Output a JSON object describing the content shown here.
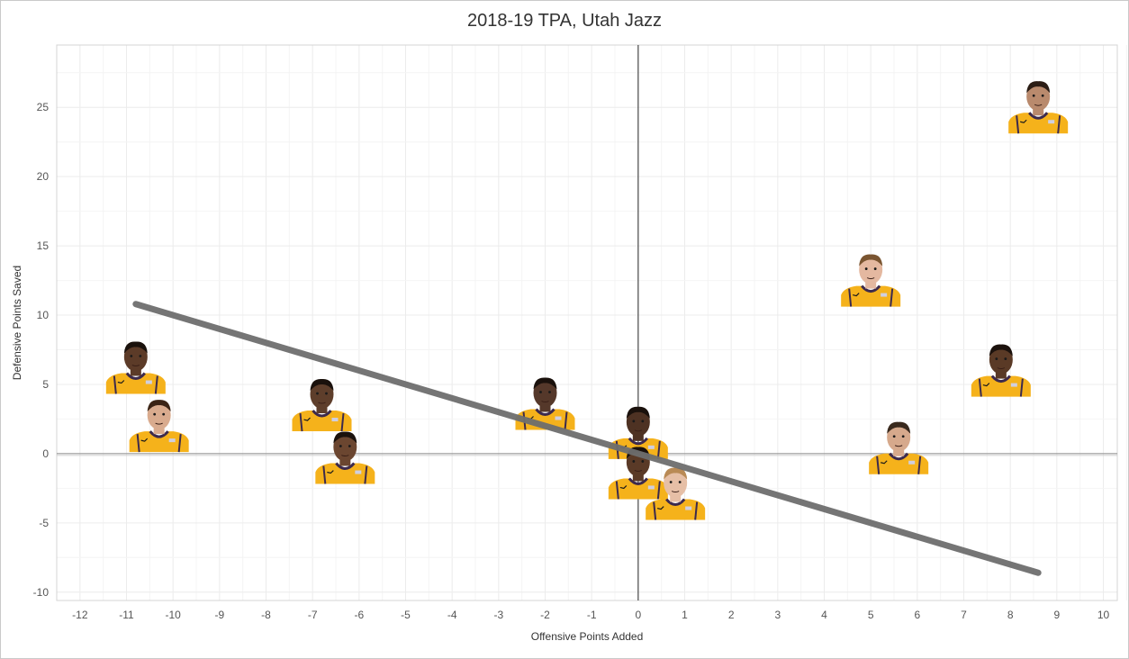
{
  "chart_data": {
    "type": "scatter",
    "title": "2018-19 TPA, Utah Jazz",
    "xlabel": "Offensive Points Added",
    "ylabel": "Defensive Points Saved",
    "xlim": [
      -12.5,
      10.3
    ],
    "ylim": [
      -10.6,
      29.5
    ],
    "x_ticks": [
      -12,
      -11,
      -10,
      -9,
      -8,
      -7,
      -6,
      -5,
      -4,
      -3,
      -2,
      -1,
      0,
      1,
      2,
      3,
      4,
      5,
      6,
      7,
      8,
      9,
      10
    ],
    "y_ticks": [
      -10,
      -5,
      0,
      5,
      10,
      15,
      20,
      25
    ],
    "grid": true,
    "points": [
      {
        "x": 8.6,
        "y": 25.0,
        "jersey": "#f5b21b",
        "skin": "#b98a6d",
        "hair": "#2b1d15"
      },
      {
        "x": 5.0,
        "y": 12.5,
        "jersey": "#f5b21b",
        "skin": "#e4b8a0",
        "hair": "#7a5531"
      },
      {
        "x": 7.8,
        "y": 6.0,
        "jersey": "#f5b21b",
        "skin": "#5a3a26",
        "hair": "#1c120d"
      },
      {
        "x": 5.6,
        "y": 0.4,
        "jersey": "#f5b21b",
        "skin": "#d6a98c",
        "hair": "#3a2a1e"
      },
      {
        "x": -10.8,
        "y": 6.2,
        "jersey": "#f5b21b",
        "skin": "#5c3b28",
        "hair": "#1a110c"
      },
      {
        "x": -10.3,
        "y": 2.0,
        "jersey": "#f5b21b",
        "skin": "#d9ab8e",
        "hair": "#3b2416"
      },
      {
        "x": -6.8,
        "y": 3.5,
        "jersey": "#f5b21b",
        "skin": "#5e3e2b",
        "hair": "#1a110c"
      },
      {
        "x": -6.3,
        "y": -0.3,
        "jersey": "#f5b21b",
        "skin": "#6b4630",
        "hair": "#1a110c"
      },
      {
        "x": -2.0,
        "y": 3.6,
        "jersey": "#f5b21b",
        "skin": "#55382a",
        "hair": "#1a110c"
      },
      {
        "x": 0.0,
        "y": 1.5,
        "jersey": "#f5b21b",
        "skin": "#4e3223",
        "hair": "#1a110c"
      },
      {
        "x": 0.0,
        "y": -1.4,
        "jersey": "#f5b21b",
        "skin": "#5a3a27",
        "hair": "#1a110c"
      },
      {
        "x": 0.8,
        "y": -2.9,
        "jersey": "#f5b21b",
        "skin": "#e6bfa6",
        "hair": "#b98a55"
      }
    ],
    "trend_line": {
      "x": [
        -10.8,
        8.6
      ],
      "y": [
        10.8,
        -8.6
      ]
    }
  },
  "colors": {
    "grid": "#ececec",
    "zero_line": "#555555",
    "trend": "#6e6e6e",
    "jersey_trim": "#3c2a4d"
  }
}
